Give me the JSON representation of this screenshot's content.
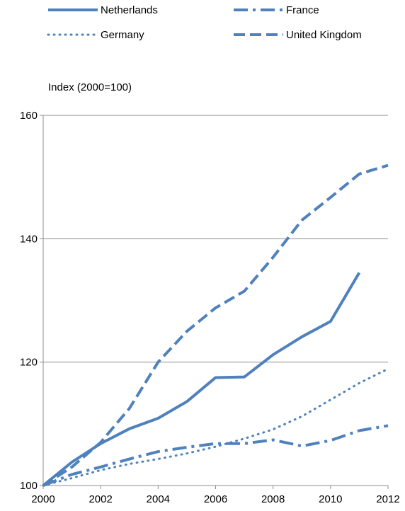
{
  "chart_data": {
    "type": "line",
    "ylabel": "Index (2000=100)",
    "xlabel": "",
    "title": "",
    "x": [
      2000,
      2001,
      2002,
      2003,
      2004,
      2005,
      2006,
      2007,
      2008,
      2009,
      2010,
      2011,
      2012
    ],
    "xlim": [
      2000,
      2012
    ],
    "ylim": [
      100,
      160
    ],
    "xticks": [
      "2000",
      "2002",
      "2004",
      "2006",
      "2008",
      "2010",
      "2012"
    ],
    "yticks": [
      "100",
      "120",
      "140",
      "160"
    ],
    "grid": "horizontal",
    "legend": "top",
    "series": [
      {
        "name": "Netherlands",
        "style": "solid",
        "values": [
          100,
          103.8,
          106.8,
          109.2,
          110.9,
          113.6,
          117.5,
          117.6,
          121.2,
          124.1,
          126.6,
          134.5,
          null
        ]
      },
      {
        "name": "France",
        "style": "dash-dot",
        "values": [
          100,
          101.8,
          103.0,
          104.3,
          105.5,
          106.2,
          106.8,
          106.8,
          107.4,
          106.4,
          107.3,
          108.9,
          109.7
        ]
      },
      {
        "name": "Germany",
        "style": "dotted",
        "values": [
          100,
          101.2,
          102.5,
          103.5,
          104.3,
          105.2,
          106.3,
          107.6,
          109.1,
          111.2,
          113.9,
          116.6,
          118.9
        ]
      },
      {
        "name": "United Kingdom",
        "style": "dashed",
        "values": [
          100,
          103.0,
          107.0,
          112.5,
          120.0,
          125.0,
          128.8,
          131.5,
          137.0,
          143.0,
          146.7,
          150.5,
          151.9
        ]
      }
    ],
    "colors": {
      "line": "#4f81bd",
      "grid": "#8c8c8c",
      "axis": "#8c8c8c"
    }
  }
}
